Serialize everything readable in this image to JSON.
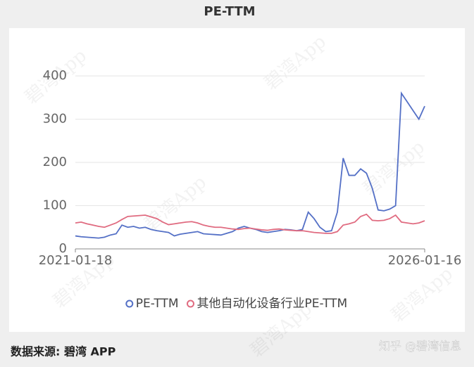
{
  "chart_data": {
    "type": "line",
    "title": "PE-TTM",
    "categories": [
      "2021-01-18",
      null,
      null,
      null,
      null,
      null,
      null,
      null,
      null,
      null,
      null,
      null,
      null,
      null,
      null,
      null,
      null,
      null,
      null,
      null,
      null,
      null,
      null,
      null,
      null,
      null,
      null,
      null,
      null,
      null,
      null,
      null,
      null,
      null,
      null,
      null,
      null,
      null,
      null,
      null,
      null,
      null,
      null,
      null,
      null,
      null,
      null,
      null,
      null,
      null,
      null,
      null,
      null,
      null,
      null,
      null,
      null,
      null,
      null,
      null,
      "2026-01-16"
    ],
    "series": [
      {
        "name": "PE-TTM",
        "color": "#5470c6",
        "values": [
          30,
          28,
          27,
          26,
          25,
          27,
          32,
          35,
          55,
          50,
          52,
          48,
          50,
          45,
          42,
          40,
          38,
          30,
          34,
          36,
          38,
          40,
          35,
          34,
          33,
          32,
          36,
          40,
          48,
          52,
          48,
          45,
          40,
          38,
          40,
          42,
          45,
          44,
          42,
          45,
          85,
          70,
          50,
          40,
          42,
          85,
          210,
          170,
          170,
          185,
          175,
          140,
          90,
          88,
          92,
          100,
          360,
          340,
          320,
          300,
          330
        ]
      },
      {
        "name": "其他自动化设备行业PE-TTM",
        "color": "#e06b80",
        "values": [
          60,
          62,
          58,
          55,
          52,
          50,
          55,
          60,
          68,
          75,
          76,
          77,
          78,
          74,
          70,
          62,
          56,
          58,
          60,
          62,
          63,
          60,
          55,
          52,
          50,
          50,
          48,
          46,
          45,
          47,
          48,
          46,
          44,
          43,
          45,
          46,
          44,
          43,
          42,
          42,
          40,
          38,
          37,
          36,
          36,
          40,
          55,
          58,
          62,
          75,
          80,
          66,
          65,
          66,
          70,
          78,
          62,
          60,
          58,
          60,
          65
        ]
      }
    ],
    "ylim": [
      0,
      400
    ],
    "yticks": [
      0,
      100,
      200,
      300,
      400
    ],
    "grid": true,
    "legend": "bottom",
    "source": "数据来源: 碧湾 APP",
    "credit": "知乎 @碧湾信息",
    "watermark": "碧湾App"
  }
}
